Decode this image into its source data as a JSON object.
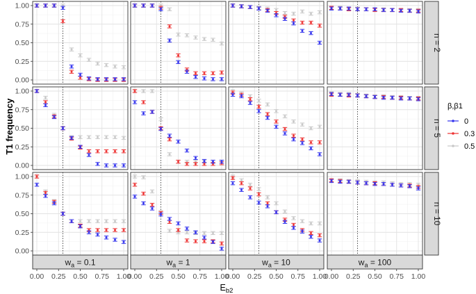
{
  "chart_data": {
    "type": "scatter",
    "subtype": "faceted point plot with error bars",
    "xlabel": "E_b2",
    "ylabel": "T1 frequency",
    "x": [
      0.0,
      0.1,
      0.2,
      0.3,
      0.4,
      0.5,
      0.6,
      0.7,
      0.8,
      0.9,
      1.0
    ],
    "xlim": [
      0.0,
      1.0
    ],
    "ylim": [
      0.0,
      1.0
    ],
    "xticks": [
      "0.00",
      "0.25",
      "0.50",
      "0.75",
      "1.00"
    ],
    "yticks": [
      "0.00",
      "0.25",
      "0.50",
      "0.75",
      "1.00"
    ],
    "vline_x": 0.3,
    "grid": true,
    "legend": {
      "title": "β,β1",
      "position": "right",
      "entries": [
        "0",
        "0.3",
        "0.5"
      ]
    },
    "series_colors": [
      "#3333ee",
      "#ee3333",
      "#c8c8c8"
    ],
    "row_labels": [
      "n = 2",
      "n = 5",
      "n = 10"
    ],
    "col_labels": [
      "w_a = 0.1",
      "w_a = 1",
      "w_a = 10",
      "w_a = 100"
    ],
    "col_label_parts": [
      {
        "base": "w",
        "sub": "a",
        "rest": " = 0.1"
      },
      {
        "base": "w",
        "sub": "a",
        "rest": " = 1"
      },
      {
        "base": "w",
        "sub": "a",
        "rest": " = 10"
      },
      {
        "base": "w",
        "sub": "a",
        "rest": " = 100"
      }
    ],
    "panels": [
      [
        {
          "series": [
            {
              "name": "0",
              "values": [
                1.0,
                1.0,
                1.0,
                0.97,
                0.18,
                0.07,
                0.02,
                0.01,
                0.01,
                0.01,
                0.01
              ]
            },
            {
              "name": "0.3",
              "values": [
                1.0,
                1.0,
                1.0,
                0.79,
                0.11,
                0.03,
                0.01,
                0.0,
                0.0,
                0.0,
                0.0
              ]
            },
            {
              "name": "0.5",
              "values": [
                1.0,
                1.0,
                1.0,
                1.0,
                0.41,
                0.33,
                0.27,
                0.22,
                0.2,
                0.18,
                0.17
              ]
            }
          ]
        },
        {
          "series": [
            {
              "name": "0",
              "values": [
                1.0,
                1.0,
                1.0,
                0.95,
                0.53,
                0.24,
                0.11,
                0.04,
                0.02,
                0.01,
                0.01
              ]
            },
            {
              "name": "0.3",
              "values": [
                1.0,
                1.0,
                1.0,
                0.97,
                0.72,
                0.33,
                0.14,
                0.09,
                0.09,
                0.09,
                0.1
              ]
            },
            {
              "name": "0.5",
              "values": [
                1.0,
                1.0,
                1.0,
                1.0,
                0.95,
                0.61,
                0.6,
                0.57,
                0.55,
                0.54,
                0.49
              ]
            }
          ]
        },
        {
          "series": [
            {
              "name": "0",
              "values": [
                1.0,
                0.99,
                0.98,
                0.96,
                0.93,
                0.87,
                0.82,
                0.76,
                0.66,
                0.63,
                0.5
              ]
            },
            {
              "name": "0.3",
              "values": [
                1.0,
                0.99,
                0.98,
                0.96,
                0.94,
                0.9,
                0.85,
                0.8,
                0.77,
                0.77,
                0.73
              ]
            },
            {
              "name": "0.5",
              "values": [
                1.0,
                0.99,
                0.98,
                0.97,
                0.96,
                0.94,
                0.9,
                0.89,
                0.92,
                0.89,
                0.91
              ]
            }
          ]
        },
        {
          "series": [
            {
              "name": "0",
              "values": [
                0.96,
                0.96,
                0.96,
                0.95,
                0.95,
                0.95,
                0.94,
                0.94,
                0.93,
                0.93,
                0.92
              ]
            },
            {
              "name": "0.3",
              "values": [
                0.97,
                0.96,
                0.95,
                0.95,
                0.95,
                0.94,
                0.94,
                0.94,
                0.94,
                0.93,
                0.93
              ]
            },
            {
              "name": "0.5",
              "values": [
                0.97,
                0.97,
                0.96,
                0.96,
                0.95,
                0.95,
                0.95,
                0.94,
                0.94,
                0.94,
                0.94
              ]
            }
          ]
        }
      ],
      [
        {
          "series": [
            {
              "name": "0",
              "values": [
                1.0,
                0.81,
                0.65,
                0.5,
                0.37,
                0.25,
                0.14,
                0.02,
                0.0,
                0.0,
                0.0
              ]
            },
            {
              "name": "0.3",
              "values": [
                1.0,
                0.85,
                0.66,
                0.5,
                0.36,
                0.24,
                0.19,
                0.19,
                0.19,
                0.19,
                0.19
              ]
            },
            {
              "name": "0.5",
              "values": [
                1.0,
                0.91,
                0.68,
                0.5,
                0.38,
                0.38,
                0.38,
                0.38,
                0.38,
                0.38,
                0.37
              ]
            }
          ]
        },
        {
          "series": [
            {
              "name": "0",
              "values": [
                0.85,
                0.7,
                0.72,
                0.49,
                0.4,
                0.32,
                0.2,
                0.1,
                0.06,
                0.05,
                0.05
              ]
            },
            {
              "name": "0.3",
              "values": [
                1.0,
                0.85,
                0.72,
                0.5,
                0.35,
                0.05,
                0.02,
                0.02,
                0.02,
                0.02,
                0.03
              ]
            },
            {
              "name": "0.5",
              "values": [
                1.0,
                1.0,
                1.0,
                0.62,
                0.15,
                0.05,
                0.05,
                0.05,
                0.05,
                0.05,
                0.05
              ]
            }
          ]
        },
        {
          "series": [
            {
              "name": "0",
              "values": [
                0.95,
                0.93,
                0.84,
                0.73,
                0.64,
                0.52,
                0.43,
                0.35,
                0.3,
                0.23,
                0.15
              ]
            },
            {
              "name": "0.3",
              "values": [
                0.98,
                0.95,
                0.89,
                0.79,
                0.69,
                0.59,
                0.49,
                0.4,
                0.35,
                0.31,
                0.31
              ]
            },
            {
              "name": "0.5",
              "values": [
                1.0,
                0.97,
                0.93,
                0.87,
                0.82,
                0.73,
                0.66,
                0.59,
                0.55,
                0.5,
                0.52
              ]
            }
          ]
        },
        {
          "series": [
            {
              "name": "0",
              "values": [
                0.96,
                0.95,
                0.95,
                0.94,
                0.93,
                0.92,
                0.91,
                0.91,
                0.9,
                0.9,
                0.89
              ]
            },
            {
              "name": "0.3",
              "values": [
                0.95,
                0.95,
                0.94,
                0.94,
                0.93,
                0.92,
                0.92,
                0.91,
                0.91,
                0.9,
                0.9
              ]
            },
            {
              "name": "0.5",
              "values": [
                0.97,
                0.96,
                0.96,
                0.95,
                0.94,
                0.93,
                0.93,
                0.92,
                0.92,
                0.91,
                0.91
              ]
            }
          ]
        }
      ],
      [
        {
          "series": [
            {
              "name": "0",
              "values": [
                0.89,
                0.74,
                0.64,
                0.5,
                0.4,
                0.33,
                0.25,
                0.22,
                0.18,
                0.15,
                0.12
              ]
            },
            {
              "name": "0.3",
              "values": [
                1.0,
                0.78,
                0.66,
                0.5,
                0.4,
                0.34,
                0.28,
                0.28,
                0.28,
                0.28,
                0.28
              ]
            },
            {
              "name": "0.5",
              "values": [
                1.0,
                0.8,
                0.67,
                0.5,
                0.4,
                0.4,
                0.4,
                0.4,
                0.4,
                0.4,
                0.4
              ]
            }
          ]
        },
        {
          "series": [
            {
              "name": "0",
              "values": [
                0.73,
                0.64,
                0.57,
                0.49,
                0.43,
                0.37,
                0.3,
                0.25,
                0.18,
                0.12,
                0.03
              ]
            },
            {
              "name": "0.3",
              "values": [
                0.89,
                0.77,
                0.62,
                0.51,
                0.39,
                0.28,
                0.14,
                0.13,
                0.13,
                0.13,
                0.1
              ]
            },
            {
              "name": "0.5",
              "values": [
                1.0,
                0.99,
                0.8,
                0.52,
                0.27,
                0.25,
                0.25,
                0.24,
                0.24,
                0.24,
                0.24
              ]
            }
          ]
        },
        {
          "series": [
            {
              "name": "0",
              "values": [
                0.91,
                0.82,
                0.72,
                0.65,
                0.6,
                0.52,
                0.39,
                0.31,
                0.26,
                0.19,
                0.14
              ]
            },
            {
              "name": "0.3",
              "values": [
                0.98,
                0.91,
                0.84,
                0.76,
                0.64,
                0.52,
                0.42,
                0.35,
                0.28,
                0.24,
                0.21
              ]
            },
            {
              "name": "0.5",
              "values": [
                1.0,
                0.95,
                0.89,
                0.83,
                0.72,
                0.64,
                0.53,
                0.44,
                0.4,
                0.37,
                0.37
              ]
            }
          ]
        },
        {
          "series": [
            {
              "name": "0",
              "values": [
                0.94,
                0.93,
                0.93,
                0.92,
                0.91,
                0.9,
                0.9,
                0.89,
                0.88,
                0.87,
                0.84
              ]
            },
            {
              "name": "0.3",
              "values": [
                0.95,
                0.94,
                0.93,
                0.92,
                0.91,
                0.91,
                0.9,
                0.89,
                0.88,
                0.88,
                0.86
              ]
            },
            {
              "name": "0.5",
              "values": [
                0.95,
                0.95,
                0.94,
                0.94,
                0.93,
                0.92,
                0.92,
                0.91,
                0.9,
                0.9,
                0.89
              ]
            }
          ]
        }
      ]
    ]
  }
}
